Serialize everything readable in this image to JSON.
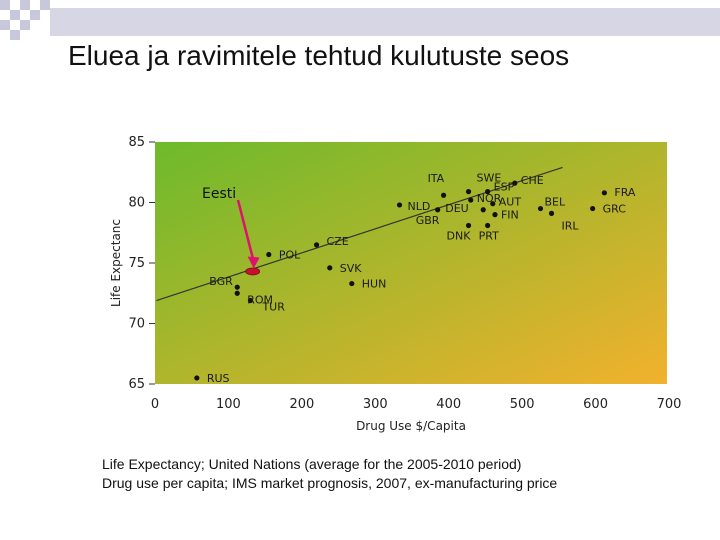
{
  "slide": {
    "title": "Eluea ja ravimitele tehtud kulutuste seos",
    "footnotes": [
      "Life Expectancy; United Nations (average for the 2005-2010 period)",
      "Drug use per capita; IMS market prognosis, 2007, ex-manufacturing price"
    ]
  },
  "colors": {
    "gradient_top_left": "#6dba2c",
    "gradient_bottom_right": "#f2b12d",
    "point": "#111111",
    "highlight": "#c8102e",
    "arrow": "#e0106c"
  },
  "chart_data": {
    "type": "scatter",
    "xlabel": "Drug Use $/Capita",
    "ylabel": "Life Expectanc",
    "xlim": [
      0,
      700
    ],
    "ylim": [
      65,
      85
    ],
    "xticks": [
      0,
      100,
      200,
      300,
      400,
      500,
      600,
      700
    ],
    "yticks": [
      65,
      70,
      75,
      80,
      85
    ],
    "grid": false,
    "points": [
      {
        "label": "RUS",
        "x": 57,
        "y": 65.5
      },
      {
        "label": "BGR",
        "x": 112,
        "y": 73.0
      },
      {
        "label": "ROM",
        "x": 112,
        "y": 72.5
      },
      {
        "label": "TUR",
        "x": 130,
        "y": 71.9
      },
      {
        "label": "POL",
        "x": 155,
        "y": 75.7
      },
      {
        "label": "CZE",
        "x": 220,
        "y": 76.5
      },
      {
        "label": "SVK",
        "x": 238,
        "y": 74.6
      },
      {
        "label": "HUN",
        "x": 268,
        "y": 73.3
      },
      {
        "label": "NLD",
        "x": 333,
        "y": 79.8
      },
      {
        "label": "ITA",
        "x": 393,
        "y": 80.6
      },
      {
        "label": "GBR",
        "x": 385,
        "y": 79.4
      },
      {
        "label": "SWE",
        "x": 427,
        "y": 80.9
      },
      {
        "label": "NOR",
        "x": 430,
        "y": 80.2
      },
      {
        "label": "DEU",
        "x": 447,
        "y": 79.4
      },
      {
        "label": "ESP",
        "x": 453,
        "y": 80.9
      },
      {
        "label": "DNK",
        "x": 427,
        "y": 78.1
      },
      {
        "label": "PRT",
        "x": 453,
        "y": 78.1
      },
      {
        "label": "AUT",
        "x": 460,
        "y": 79.9
      },
      {
        "label": "FIN",
        "x": 463,
        "y": 79.0
      },
      {
        "label": "CHE",
        "x": 490,
        "y": 81.6
      },
      {
        "label": "BEL",
        "x": 525,
        "y": 79.5
      },
      {
        "label": "IRL",
        "x": 540,
        "y": 79.1
      },
      {
        "label": "FRA",
        "x": 612,
        "y": 80.8
      },
      {
        "label": "GRC",
        "x": 596,
        "y": 79.5
      },
      {
        "label": "Eesti",
        "x": 133,
        "y": 74.3,
        "highlight": true
      }
    ],
    "trendline": {
      "x": [
        2,
        555
      ],
      "y": [
        71.9,
        82.9
      ]
    },
    "annotations": [
      {
        "text": "Eesti",
        "target": "Eesti"
      }
    ]
  }
}
